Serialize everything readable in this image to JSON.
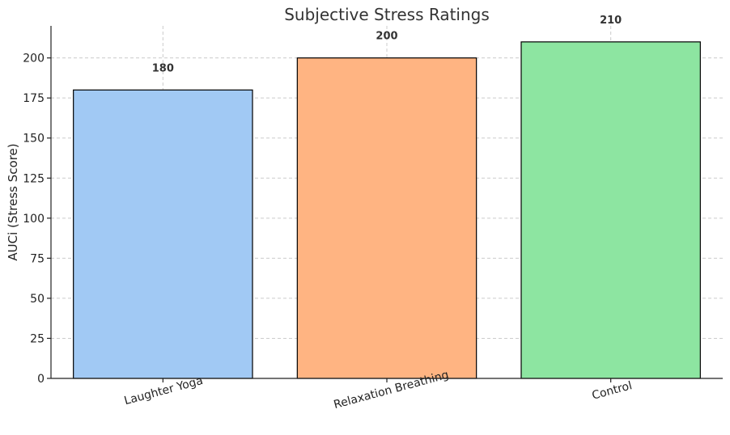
{
  "chart_data": {
    "type": "bar",
    "title": "Subjective Stress Ratings",
    "xlabel": "",
    "ylabel": "AUCi (Stress Score)",
    "categories": [
      "Laughter Yoga",
      "Relaxation Breathing",
      "Control"
    ],
    "values": [
      180,
      200,
      210
    ],
    "data_labels": [
      "180",
      "200",
      "210"
    ],
    "colors": [
      "#a1c9f4",
      "#ffb482",
      "#8de5a1"
    ],
    "ylim": [
      0,
      220
    ],
    "yticks": [
      0,
      25,
      50,
      75,
      100,
      125,
      150,
      175,
      200
    ],
    "grid": true,
    "legend": "none"
  }
}
